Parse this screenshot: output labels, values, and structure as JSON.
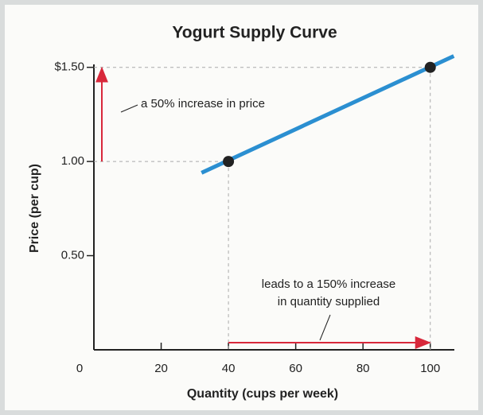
{
  "chart_data": {
    "type": "line",
    "title": "Yogurt Supply Curve",
    "x_label": "Quantity (cups per week)",
    "y_label": "Price (per cup)",
    "xlim": [
      0,
      110
    ],
    "ylim": [
      0,
      1.6
    ],
    "xticks": [
      0,
      20,
      40,
      60,
      80,
      100
    ],
    "yticks": [
      {
        "value": 0.5,
        "label": "0.50"
      },
      {
        "value": 1,
        "label": "1.00"
      },
      {
        "value": 1.5,
        "label": "$1.50"
      }
    ],
    "series": [
      {
        "color": "#2b8fd1",
        "x": [
          32,
          107
        ],
        "values": [
          0.94,
          1.56
        ]
      },
      {
        "color": "#222222",
        "x": [
          40,
          100
        ],
        "values": [
          1.0,
          1.5
        ],
        "markers": true
      }
    ],
    "arrow_color": "#d8283b",
    "annotations": [
      {
        "lines": [
          "a 50% increase in price"
        ]
      },
      {
        "lines": [
          "leads to a 150% increase",
          "in quantity supplied"
        ]
      }
    ]
  }
}
